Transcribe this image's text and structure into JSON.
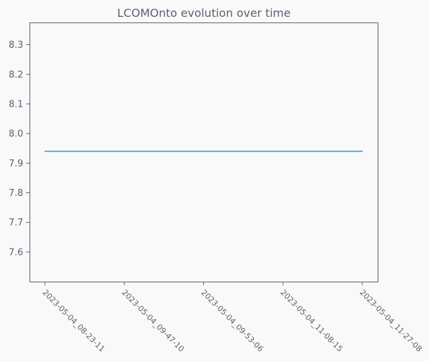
{
  "chart_data": {
    "type": "line",
    "title": "LCOMOnto evolution over time",
    "xlabel": "",
    "ylabel": "",
    "categories": [
      "2023-05-04_08-23-11",
      "2023-05-04_09-47-10",
      "2023-05-04_09-53-06",
      "2023-05-04_11-08-15",
      "2023-05-04_11-27-08"
    ],
    "series": [
      {
        "values": [
          7.94,
          7.94,
          7.94,
          7.94,
          7.94
        ]
      }
    ],
    "ylim": [
      7.5,
      8.375
    ],
    "yticks": [
      "7.6",
      "7.7",
      "7.8",
      "7.9",
      "8.0",
      "8.1",
      "8.2",
      "8.3"
    ],
    "grid": false,
    "colors": {
      "line": "#2e9fd6",
      "axes": "#5a6272",
      "background": "#f9f9f9"
    }
  }
}
